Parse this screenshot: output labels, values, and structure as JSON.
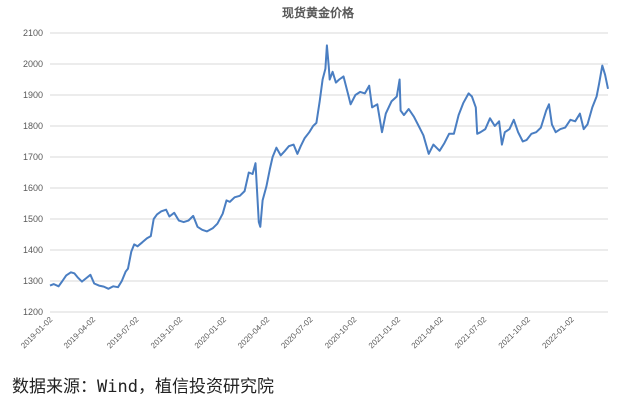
{
  "chart_data": {
    "type": "line",
    "title": "现货黄金价格",
    "xlabel": "",
    "ylabel": "",
    "ylim": [
      1200,
      2100
    ],
    "yticks": [
      "1200",
      "1300",
      "1400",
      "1500",
      "1600",
      "1700",
      "1800",
      "1900",
      "2000",
      "2100"
    ],
    "xticks": [
      "2019-01-02",
      "2019-04-02",
      "2019-07-02",
      "2019-10-02",
      "2020-01-02",
      "2020-04-02",
      "2020-07-02",
      "2020-10-02",
      "2021-01-02",
      "2021-04-02",
      "2021-07-02",
      "2021-10-02",
      "2022-01-02"
    ],
    "xrange": [
      "2019-01-02",
      "2022-03-20"
    ],
    "grid": "horizontal",
    "legend": "none",
    "color": "#4a7ec2",
    "series": [
      {
        "x": [
          "2019-01-02",
          "2019-01-10",
          "2019-01-20",
          "2019-01-28",
          "2019-02-05",
          "2019-02-15",
          "2019-02-22",
          "2019-03-01",
          "2019-03-10",
          "2019-03-20",
          "2019-03-28",
          "2019-04-05",
          "2019-04-15",
          "2019-04-25",
          "2019-05-05",
          "2019-05-15",
          "2019-05-25",
          "2019-06-02",
          "2019-06-10",
          "2019-06-15",
          "2019-06-22",
          "2019-06-28",
          "2019-07-05",
          "2019-07-15",
          "2019-07-25",
          "2019-08-02",
          "2019-08-08",
          "2019-08-15",
          "2019-08-24",
          "2019-09-03",
          "2019-09-10",
          "2019-09-20",
          "2019-09-30",
          "2019-10-10",
          "2019-10-20",
          "2019-10-30",
          "2019-11-08",
          "2019-11-18",
          "2019-11-28",
          "2019-12-10",
          "2019-12-20",
          "2019-12-31",
          "2020-01-08",
          "2020-01-15",
          "2020-01-25",
          "2020-02-05",
          "2020-02-15",
          "2020-02-24",
          "2020-03-03",
          "2020-03-09",
          "2020-03-16",
          "2020-03-19",
          "2020-03-24",
          "2020-04-01",
          "2020-04-08",
          "2020-04-14",
          "2020-04-22",
          "2020-05-01",
          "2020-05-10",
          "2020-05-18",
          "2020-05-28",
          "2020-06-05",
          "2020-06-12",
          "2020-06-20",
          "2020-06-30",
          "2020-07-08",
          "2020-07-15",
          "2020-07-22",
          "2020-07-28",
          "2020-08-03",
          "2020-08-06",
          "2020-08-10",
          "2020-08-12",
          "2020-08-18",
          "2020-08-25",
          "2020-09-01",
          "2020-09-10",
          "2020-09-20",
          "2020-09-25",
          "2020-10-05",
          "2020-10-15",
          "2020-10-25",
          "2020-11-03",
          "2020-11-09",
          "2020-11-20",
          "2020-11-30",
          "2020-12-08",
          "2020-12-20",
          "2020-12-31",
          "2021-01-06",
          "2021-01-08",
          "2021-01-15",
          "2021-01-25",
          "2021-02-05",
          "2021-02-15",
          "2021-02-25",
          "2021-03-08",
          "2021-03-18",
          "2021-03-31",
          "2021-04-10",
          "2021-04-20",
          "2021-04-30",
          "2021-05-10",
          "2021-05-20",
          "2021-05-31",
          "2021-06-07",
          "2021-06-15",
          "2021-06-18",
          "2021-06-25",
          "2021-07-05",
          "2021-07-15",
          "2021-07-25",
          "2021-08-03",
          "2021-08-09",
          "2021-08-15",
          "2021-08-25",
          "2021-09-03",
          "2021-09-12",
          "2021-09-22",
          "2021-09-30",
          "2021-10-10",
          "2021-10-20",
          "2021-10-30",
          "2021-11-10",
          "2021-11-16",
          "2021-11-22",
          "2021-11-30",
          "2021-12-10",
          "2021-12-20",
          "2021-12-31",
          "2022-01-10",
          "2022-01-20",
          "2022-01-28",
          "2022-02-05",
          "2022-02-15",
          "2022-02-24",
          "2022-03-01",
          "2022-03-08",
          "2022-03-14",
          "2022-03-20"
        ],
        "y": [
          1285,
          1290,
          1283,
          1300,
          1318,
          1328,
          1325,
          1312,
          1298,
          1310,
          1320,
          1292,
          1285,
          1282,
          1275,
          1283,
          1280,
          1300,
          1330,
          1340,
          1395,
          1418,
          1412,
          1425,
          1438,
          1445,
          1500,
          1515,
          1525,
          1530,
          1508,
          1520,
          1495,
          1490,
          1495,
          1510,
          1475,
          1465,
          1460,
          1470,
          1485,
          1517,
          1560,
          1555,
          1570,
          1575,
          1590,
          1650,
          1645,
          1680,
          1490,
          1475,
          1560,
          1605,
          1660,
          1700,
          1730,
          1705,
          1720,
          1735,
          1740,
          1710,
          1735,
          1760,
          1780,
          1800,
          1810,
          1880,
          1950,
          1985,
          2060,
          1990,
          1950,
          1975,
          1940,
          1950,
          1960,
          1900,
          1870,
          1900,
          1910,
          1905,
          1930,
          1860,
          1870,
          1780,
          1840,
          1880,
          1895,
          1950,
          1850,
          1835,
          1855,
          1830,
          1800,
          1770,
          1710,
          1740,
          1720,
          1745,
          1775,
          1775,
          1835,
          1875,
          1905,
          1895,
          1860,
          1775,
          1780,
          1790,
          1825,
          1800,
          1815,
          1740,
          1780,
          1790,
          1820,
          1780,
          1750,
          1755,
          1775,
          1780,
          1795,
          1850,
          1870,
          1805,
          1780,
          1790,
          1795,
          1820,
          1815,
          1840,
          1790,
          1805,
          1860,
          1895,
          1935,
          1995,
          1965,
          1920
        ]
      }
    ]
  },
  "footer": {
    "source": "数据来源：Wind，植信投资研究院"
  }
}
